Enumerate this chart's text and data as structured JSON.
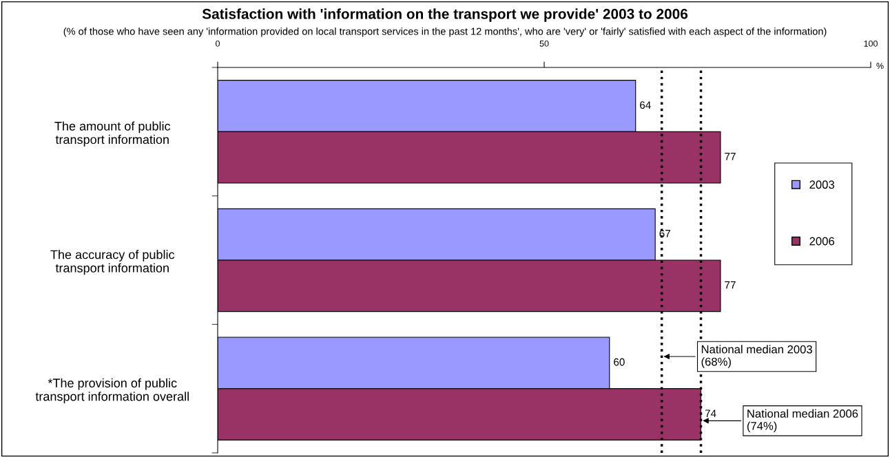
{
  "chart_data": {
    "type": "bar",
    "orientation": "horizontal",
    "title": "Satisfaction with 'information on the transport we provide' 2003 to 2006",
    "subtitle": "(% of those who have seen any 'information provided on local transport services in the past 12 months', who are 'very' or 'fairly' satisfied with each aspect of the information)",
    "xlabel": "%",
    "categories": [
      "The amount of public\ntransport information",
      "The accuracy of public\ntransport information",
      "*The provision of public\ntransport information overall"
    ],
    "series": [
      {
        "name": "2003",
        "color": "#9999ff",
        "values": [
          64,
          67,
          60
        ]
      },
      {
        "name": "2006",
        "color": "#993366",
        "values": [
          77,
          77,
          74
        ]
      }
    ],
    "xlim": [
      0,
      100
    ],
    "xticks": [
      0,
      50,
      100
    ],
    "data_labels": true,
    "grid": false,
    "legend": "right",
    "ref_lines": [
      {
        "axis": "x",
        "value": 68,
        "label": "National median 2003\n(68%)",
        "line_style": "dotted",
        "color": "#000000"
      },
      {
        "axis": "x",
        "value": 74,
        "label": "National median 2006\n(74%)",
        "line_style": "dotted",
        "color": "#000000"
      }
    ]
  }
}
